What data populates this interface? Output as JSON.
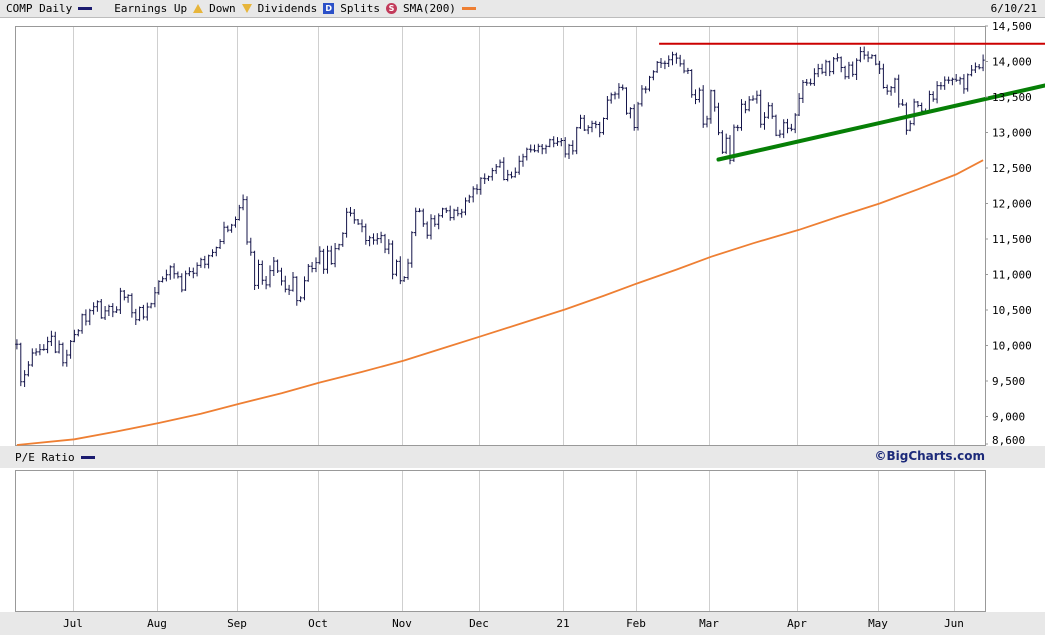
{
  "header": {
    "symbol": "COMP Daily",
    "earnings_up_label": "Earnings Up",
    "down_label": "Down",
    "dividends_label": "Dividends",
    "dividends_glyph": "D",
    "splits_label": "Splits",
    "splits_glyph": "S",
    "sma_label": "SMA(200)",
    "date": "6/10/21",
    "colors": {
      "price_series": "#15154a",
      "sma_series": "#ee7f33",
      "earnings_icon": "#e7b53a",
      "dividends_icon": "#2b50c8",
      "splits_icon": "#c23a5a",
      "legend_swatch_navy": "#1b1b6f"
    }
  },
  "pe_panel": {
    "label": "P/E Ratio"
  },
  "footer": {
    "copyright": "©BigCharts.com"
  },
  "chart_data": {
    "type": "candlestick",
    "title": "COMP Daily",
    "symbol": "COMP",
    "frequency": "Daily",
    "as_of_date": "6/10/21",
    "legend": [
      "Earnings Up",
      "Down",
      "Dividends",
      "Splits",
      "SMA(200)"
    ],
    "x_axis": {
      "tick_labels": [
        "Jul",
        "Aug",
        "Sep",
        "Oct",
        "Nov",
        "Dec",
        "21",
        "Feb",
        "Mar",
        "Apr",
        "May",
        "Jun"
      ],
      "month_start_indices": [
        15,
        37,
        58,
        79,
        101,
        121,
        143,
        162,
        181,
        204,
        225,
        245
      ],
      "total_days": 253,
      "grid": "vertical-month-lines"
    },
    "y_axis": {
      "range": [
        8600,
        14500
      ],
      "ticks": [
        14500,
        14000,
        13500,
        13000,
        12500,
        12000,
        11500,
        11000,
        10500,
        10000,
        9500,
        9000,
        8600
      ],
      "tick_labels": [
        "14,500",
        "14,000",
        "13,500",
        "13,000",
        "12,500",
        "12,000",
        "11,500",
        "11,000",
        "10,500",
        "10,000",
        "9,500",
        "9,000",
        "8,600"
      ],
      "side": "right",
      "grid": false
    },
    "series": [
      {
        "name": "COMP price",
        "style": "hlc_bars",
        "color": "#15154a",
        "closes": [
          10020,
          9492,
          9588,
          9726,
          9895,
          9911,
          9943,
          9946,
          10056,
          10131,
          9909,
          10017,
          9757,
          9867,
          10059,
          10154,
          10208,
          10433,
          10344,
          10493,
          10548,
          10617,
          10390,
          10488,
          10550,
          10474,
          10503,
          10767,
          10681,
          10706,
          10461,
          10363,
          10536,
          10402,
          10543,
          10588,
          10745,
          10903,
          10941,
          10998,
          11108,
          11011,
          10968,
          10783,
          11012,
          11042,
          11019,
          11129,
          11210,
          11146,
          11265,
          11312,
          11380,
          11466,
          11665,
          11626,
          11696,
          11775,
          11940,
          12056,
          11458,
          11313,
          10848,
          11142,
          10920,
          10854,
          11056,
          11190,
          11050,
          10910,
          10793,
          10779,
          10963,
          10633,
          10672,
          10914,
          11118,
          11085,
          11168,
          11327,
          11075,
          11332,
          11155,
          11365,
          11420,
          11580,
          11876,
          11864,
          11769,
          11714,
          11672,
          11479,
          11517,
          11485,
          11506,
          11548,
          11359,
          11431,
          11005,
          11185,
          10912,
          10958,
          11161,
          11591,
          11890,
          11895,
          11714,
          11554,
          11786,
          11709,
          11829,
          11924,
          11899,
          11802,
          11905,
          11855,
          11880,
          12037,
          12094,
          12206,
          12199,
          12355,
          12349,
          12377,
          12464,
          12519,
          12582,
          12339,
          12406,
          12378,
          12440,
          12595,
          12658,
          12764,
          12756,
          12742,
          12808,
          12771,
          12804,
          12899,
          12850,
          12870,
          12888,
          12698,
          12819,
          12741,
          13067,
          13202,
          13036,
          13072,
          13129,
          13113,
          12999,
          13197,
          13457,
          13531,
          13543,
          13636,
          13626,
          13271,
          13337,
          13071,
          13403,
          13613,
          13611,
          13777,
          13856,
          13988,
          13975,
          13973,
          14026,
          14095,
          14048,
          13966,
          13866,
          13874,
          13533,
          13465,
          13598,
          13119,
          13192,
          13589,
          13358,
          12997,
          12723,
          12920,
          12609,
          13074,
          13069,
          13398,
          13320,
          13460,
          13472,
          13525,
          13116,
          13215,
          13378,
          13228,
          12962,
          12978,
          13139,
          13060,
          13046,
          13247,
          13480,
          13706,
          13698,
          13689,
          13829,
          13900,
          13850,
          13996,
          13858,
          14039,
          14052,
          13915,
          13786,
          13950,
          13818,
          14017,
          14139,
          14090,
          14051,
          14083,
          13963,
          13896,
          13634,
          13583,
          13633,
          13752,
          13402,
          13389,
          13032,
          13125,
          13430,
          13380,
          13303,
          13300,
          13536,
          13471,
          13661,
          13658,
          13738,
          13736,
          13749,
          13736,
          13756,
          13614,
          13814,
          13881,
          13925,
          13912,
          14020
        ]
      },
      {
        "name": "SMA(200)",
        "style": "line",
        "color": "#ee7f33",
        "points": [
          [
            0,
            8600
          ],
          [
            15,
            8680
          ],
          [
            26,
            8790
          ],
          [
            37,
            8910
          ],
          [
            48,
            9040
          ],
          [
            58,
            9180
          ],
          [
            69,
            9330
          ],
          [
            79,
            9480
          ],
          [
            90,
            9630
          ],
          [
            101,
            9790
          ],
          [
            111,
            9960
          ],
          [
            121,
            10130
          ],
          [
            132,
            10320
          ],
          [
            143,
            10510
          ],
          [
            153,
            10700
          ],
          [
            162,
            10880
          ],
          [
            172,
            11070
          ],
          [
            181,
            11250
          ],
          [
            192,
            11440
          ],
          [
            204,
            11630
          ],
          [
            214,
            11810
          ],
          [
            225,
            12000
          ],
          [
            235,
            12200
          ],
          [
            245,
            12410
          ],
          [
            252,
            12610
          ]
        ]
      }
    ],
    "annotations": [
      {
        "name": "resistance-line",
        "style": "horizontal_line",
        "color": "#cc0000",
        "stroke_width": 2,
        "value": 14250,
        "start_day": 168,
        "extend_right": true
      },
      {
        "name": "support-trendline",
        "style": "trend_line",
        "color": "#067f06",
        "stroke_width": 4,
        "from_day": 183,
        "from_value": 12620,
        "to_day": 252,
        "to_value": 13460,
        "extend_right": true
      }
    ],
    "sub_chart": {
      "label": "P/E Ratio",
      "values": []
    }
  }
}
